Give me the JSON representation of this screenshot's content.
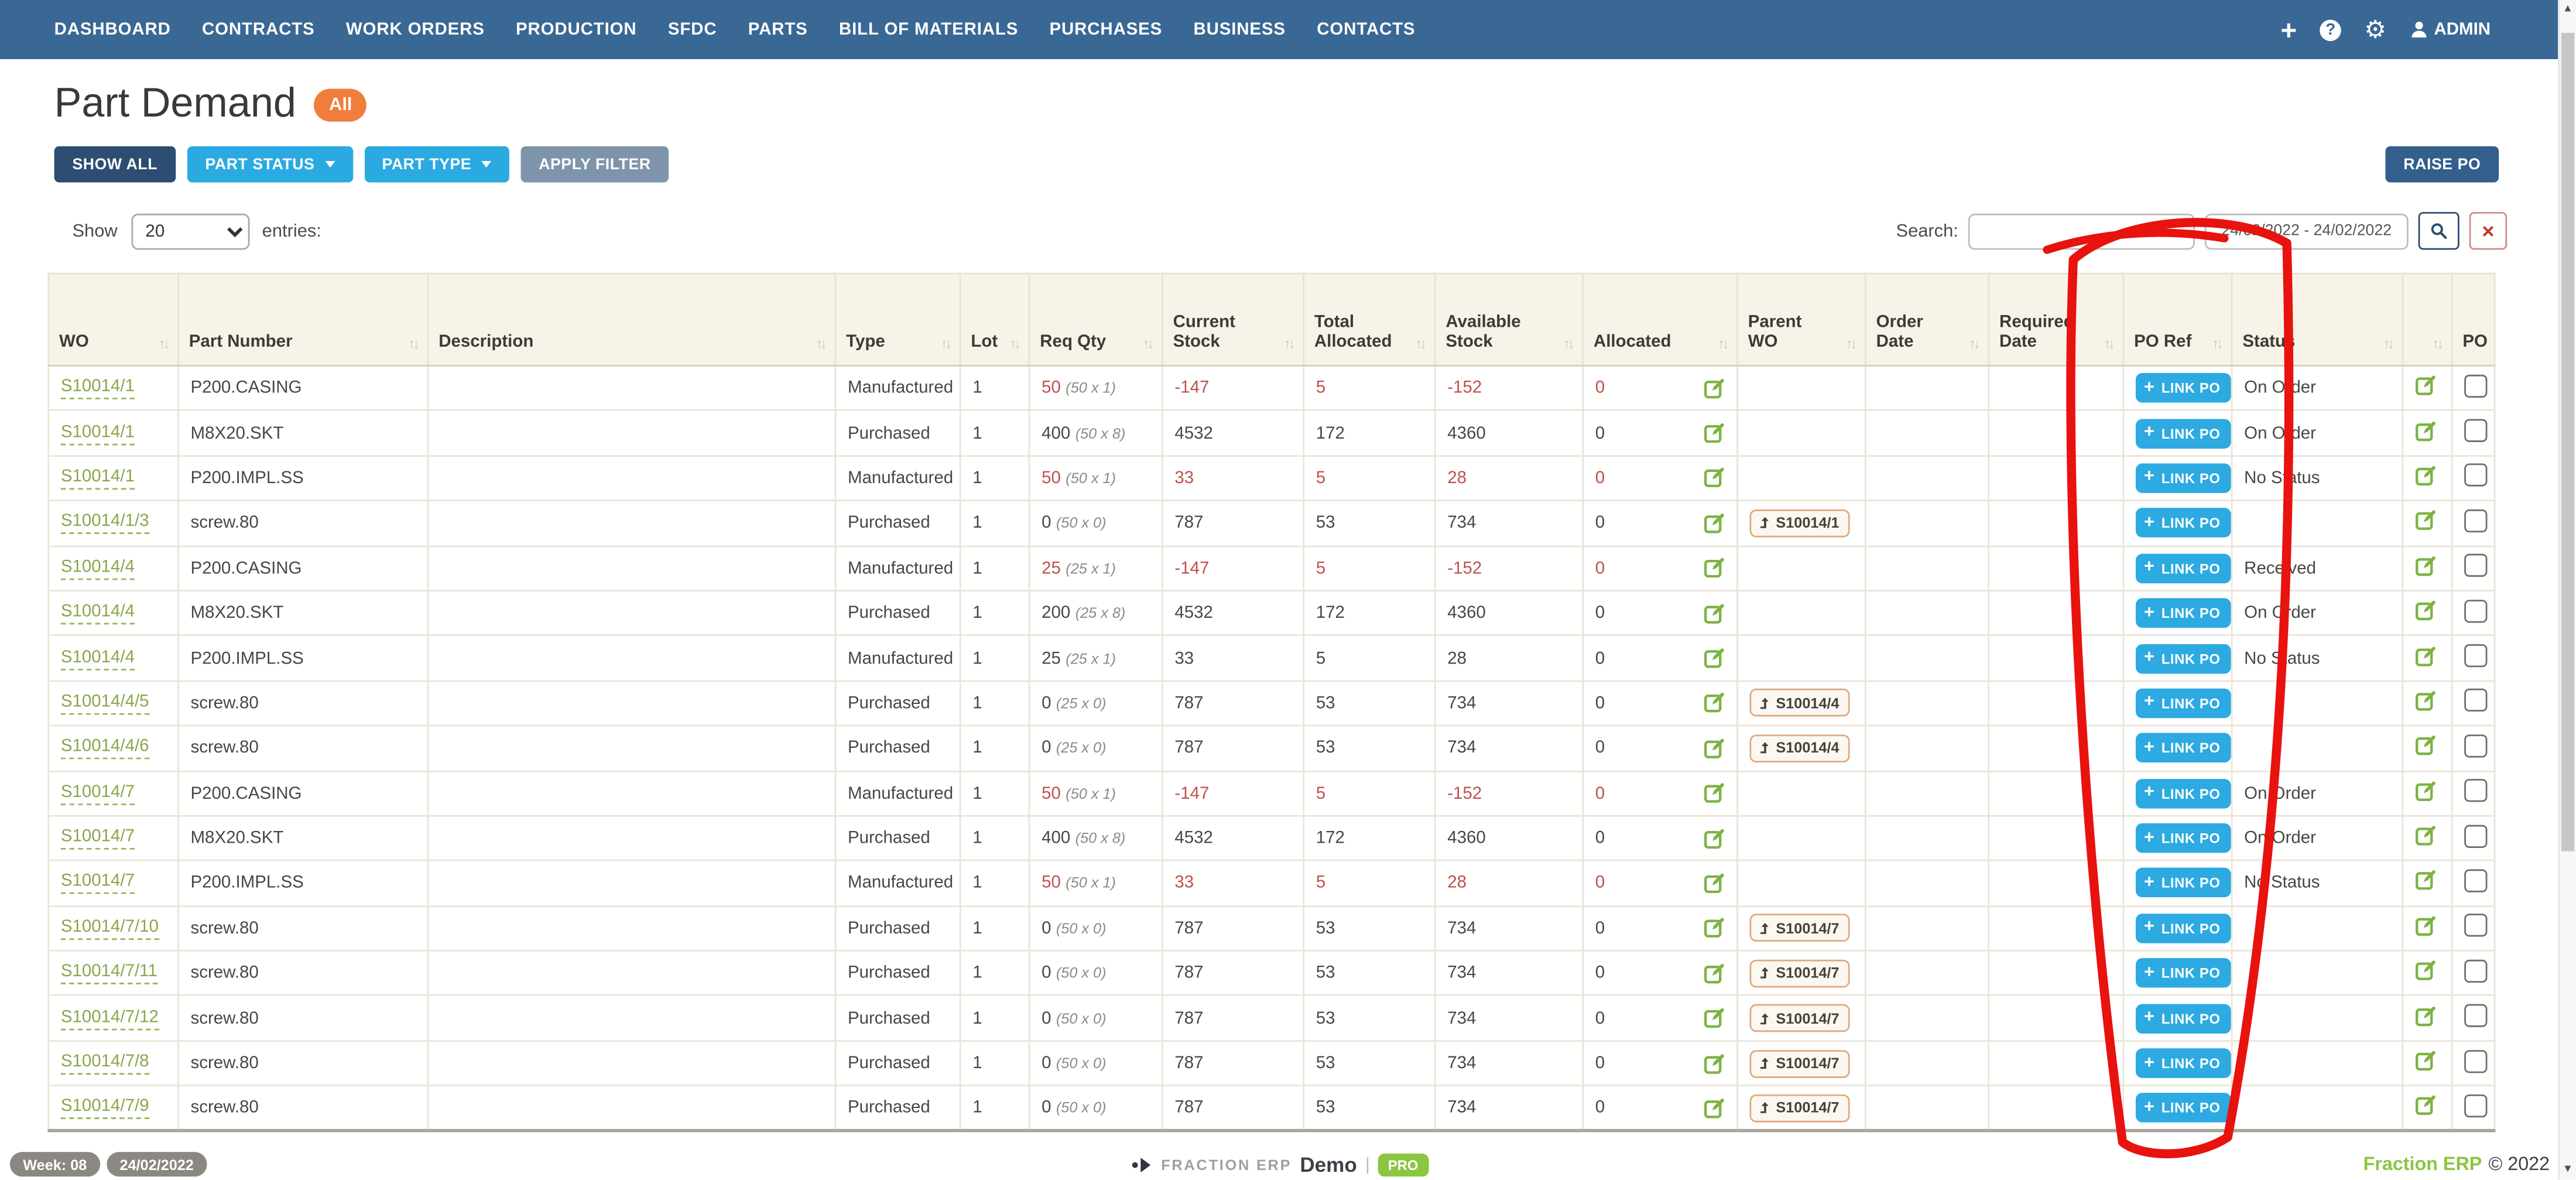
{
  "nav": {
    "items": [
      "DASHBOARD",
      "CONTRACTS",
      "WORK ORDERS",
      "PRODUCTION",
      "SFDC",
      "PARTS",
      "BILL OF MATERIALS",
      "PURCHASES",
      "BUSINESS",
      "CONTACTS"
    ],
    "admin": "ADMIN"
  },
  "page": {
    "title": "Part Demand",
    "badge": "All"
  },
  "filters": {
    "show_all": "SHOW ALL",
    "part_status": "PART STATUS",
    "part_type": "PART TYPE",
    "apply_filter": "APPLY FILTER",
    "raise_po": "RAISE PO"
  },
  "controls": {
    "show_label": "Show",
    "page_size": "20",
    "entries_label": "entries:",
    "search_label": "Search:",
    "search_value": "",
    "date_range": "24/02/2022 - 24/02/2022"
  },
  "table": {
    "link_po": "LINK PO",
    "headers": [
      {
        "label": "WO",
        "sort": true
      },
      {
        "label": "Part Number",
        "sort": true
      },
      {
        "label": "Description",
        "sort": true
      },
      {
        "label": "Type",
        "sort": true
      },
      {
        "label": "Lot",
        "sort": true
      },
      {
        "label": "Req Qty",
        "sort": true
      },
      {
        "label": "Current Stock",
        "sort": true
      },
      {
        "label": "Total Allocated",
        "sort": true
      },
      {
        "label": "Available Stock",
        "sort": true
      },
      {
        "label": "Allocated",
        "sort": true
      },
      {
        "label": "Parent WO",
        "sort": true
      },
      {
        "label": "Order Date",
        "sort": true
      },
      {
        "label": "Required Date",
        "sort": true
      },
      {
        "label": "PO Ref",
        "sort": true
      },
      {
        "label": "Status",
        "sort": true
      },
      {
        "label": "",
        "sort": true
      },
      {
        "label": "PO",
        "sort": false
      }
    ],
    "rows": [
      {
        "wo": "S10014/1",
        "part": "P200.CASING",
        "desc": "",
        "type": "Manufactured",
        "lot": "1",
        "qty": "50",
        "qty_note": "(50 x 1)",
        "qty_alert": true,
        "cur": "-147",
        "tot": "5",
        "avail": "-152",
        "alloc": "0",
        "stock_alert": true,
        "parent": "",
        "order_date": "",
        "required_date": "",
        "status": "On Order"
      },
      {
        "wo": "S10014/1",
        "part": "M8X20.SKT",
        "desc": "",
        "type": "Purchased",
        "lot": "1",
        "qty": "400",
        "qty_note": "(50 x 8)",
        "qty_alert": false,
        "cur": "4532",
        "tot": "172",
        "avail": "4360",
        "alloc": "0",
        "stock_alert": false,
        "parent": "",
        "order_date": "",
        "required_date": "",
        "status": "On Order"
      },
      {
        "wo": "S10014/1",
        "part": "P200.IMPL.SS",
        "desc": "",
        "type": "Manufactured",
        "lot": "1",
        "qty": "50",
        "qty_note": "(50 x 1)",
        "qty_alert": true,
        "cur": "33",
        "tot": "5",
        "avail": "28",
        "alloc": "0",
        "stock_alert": true,
        "parent": "",
        "order_date": "",
        "required_date": "",
        "status": "No Status"
      },
      {
        "wo": "S10014/1/3",
        "part": "screw.80",
        "desc": "",
        "type": "Purchased",
        "lot": "1",
        "qty": "0",
        "qty_note": "(50 x 0)",
        "qty_alert": false,
        "cur": "787",
        "tot": "53",
        "avail": "734",
        "alloc": "0",
        "stock_alert": false,
        "parent": "S10014/1",
        "order_date": "",
        "required_date": "",
        "status": ""
      },
      {
        "wo": "S10014/4",
        "part": "P200.CASING",
        "desc": "",
        "type": "Manufactured",
        "lot": "1",
        "qty": "25",
        "qty_note": "(25 x 1)",
        "qty_alert": true,
        "cur": "-147",
        "tot": "5",
        "avail": "-152",
        "alloc": "0",
        "stock_alert": true,
        "parent": "",
        "order_date": "",
        "required_date": "",
        "status": "Received"
      },
      {
        "wo": "S10014/4",
        "part": "M8X20.SKT",
        "desc": "",
        "type": "Purchased",
        "lot": "1",
        "qty": "200",
        "qty_note": "(25 x 8)",
        "qty_alert": false,
        "cur": "4532",
        "tot": "172",
        "avail": "4360",
        "alloc": "0",
        "stock_alert": false,
        "parent": "",
        "order_date": "",
        "required_date": "",
        "status": "On Order"
      },
      {
        "wo": "S10014/4",
        "part": "P200.IMPL.SS",
        "desc": "",
        "type": "Manufactured",
        "lot": "1",
        "qty": "25",
        "qty_note": "(25 x 1)",
        "qty_alert": false,
        "cur": "33",
        "tot": "5",
        "avail": "28",
        "alloc": "0",
        "stock_alert": false,
        "parent": "",
        "order_date": "",
        "required_date": "",
        "status": "No Status"
      },
      {
        "wo": "S10014/4/5",
        "part": "screw.80",
        "desc": "",
        "type": "Purchased",
        "lot": "1",
        "qty": "0",
        "qty_note": "(25 x 0)",
        "qty_alert": false,
        "cur": "787",
        "tot": "53",
        "avail": "734",
        "alloc": "0",
        "stock_alert": false,
        "parent": "S10014/4",
        "order_date": "",
        "required_date": "",
        "status": ""
      },
      {
        "wo": "S10014/4/6",
        "part": "screw.80",
        "desc": "",
        "type": "Purchased",
        "lot": "1",
        "qty": "0",
        "qty_note": "(25 x 0)",
        "qty_alert": false,
        "cur": "787",
        "tot": "53",
        "avail": "734",
        "alloc": "0",
        "stock_alert": false,
        "parent": "S10014/4",
        "order_date": "",
        "required_date": "",
        "status": ""
      },
      {
        "wo": "S10014/7",
        "part": "P200.CASING",
        "desc": "",
        "type": "Manufactured",
        "lot": "1",
        "qty": "50",
        "qty_note": "(50 x 1)",
        "qty_alert": true,
        "cur": "-147",
        "tot": "5",
        "avail": "-152",
        "alloc": "0",
        "stock_alert": true,
        "parent": "",
        "order_date": "",
        "required_date": "",
        "status": "On Order"
      },
      {
        "wo": "S10014/7",
        "part": "M8X20.SKT",
        "desc": "",
        "type": "Purchased",
        "lot": "1",
        "qty": "400",
        "qty_note": "(50 x 8)",
        "qty_alert": false,
        "cur": "4532",
        "tot": "172",
        "avail": "4360",
        "alloc": "0",
        "stock_alert": false,
        "parent": "",
        "order_date": "",
        "required_date": "",
        "status": "On Order"
      },
      {
        "wo": "S10014/7",
        "part": "P200.IMPL.SS",
        "desc": "",
        "type": "Manufactured",
        "lot": "1",
        "qty": "50",
        "qty_note": "(50 x 1)",
        "qty_alert": true,
        "cur": "33",
        "tot": "5",
        "avail": "28",
        "alloc": "0",
        "stock_alert": true,
        "parent": "",
        "order_date": "",
        "required_date": "",
        "status": "No Status"
      },
      {
        "wo": "S10014/7/10",
        "part": "screw.80",
        "desc": "",
        "type": "Purchased",
        "lot": "1",
        "qty": "0",
        "qty_note": "(50 x 0)",
        "qty_alert": false,
        "cur": "787",
        "tot": "53",
        "avail": "734",
        "alloc": "0",
        "stock_alert": false,
        "parent": "S10014/7",
        "order_date": "",
        "required_date": "",
        "status": ""
      },
      {
        "wo": "S10014/7/11",
        "part": "screw.80",
        "desc": "",
        "type": "Purchased",
        "lot": "1",
        "qty": "0",
        "qty_note": "(50 x 0)",
        "qty_alert": false,
        "cur": "787",
        "tot": "53",
        "avail": "734",
        "alloc": "0",
        "stock_alert": false,
        "parent": "S10014/7",
        "order_date": "",
        "required_date": "",
        "status": ""
      },
      {
        "wo": "S10014/7/12",
        "part": "screw.80",
        "desc": "",
        "type": "Purchased",
        "lot": "1",
        "qty": "0",
        "qty_note": "(50 x 0)",
        "qty_alert": false,
        "cur": "787",
        "tot": "53",
        "avail": "734",
        "alloc": "0",
        "stock_alert": false,
        "parent": "S10014/7",
        "order_date": "",
        "required_date": "",
        "status": ""
      },
      {
        "wo": "S10014/7/8",
        "part": "screw.80",
        "desc": "",
        "type": "Purchased",
        "lot": "1",
        "qty": "0",
        "qty_note": "(50 x 0)",
        "qty_alert": false,
        "cur": "787",
        "tot": "53",
        "avail": "734",
        "alloc": "0",
        "stock_alert": false,
        "parent": "S10014/7",
        "order_date": "",
        "required_date": "",
        "status": ""
      },
      {
        "wo": "S10014/7/9",
        "part": "screw.80",
        "desc": "",
        "type": "Purchased",
        "lot": "1",
        "qty": "0",
        "qty_note": "(50 x 0)",
        "qty_alert": false,
        "cur": "787",
        "tot": "53",
        "avail": "734",
        "alloc": "0",
        "stock_alert": false,
        "parent": "S10014/7",
        "order_date": "",
        "required_date": "",
        "status": ""
      }
    ]
  },
  "footer": {
    "week_badge": "Week: 08",
    "date_badge": "24/02/2022",
    "brand": "FRACTION ERP",
    "mode": "Demo",
    "pro": "PRO",
    "copy_brand": "Fraction ERP",
    "copy_year": "© 2022"
  },
  "annotation": {
    "shape": "hand-drawn-oval",
    "target": "PO Ref column",
    "color": "#e8120e"
  }
}
